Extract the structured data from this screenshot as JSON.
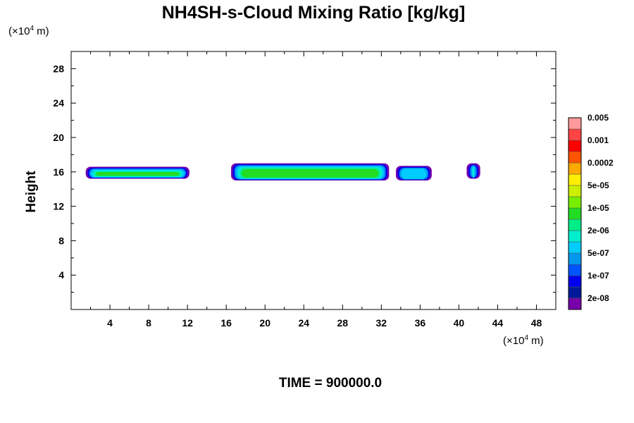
{
  "chart_data": {
    "type": "heatmap",
    "title": "NH4SH-s-Cloud Mixing Ratio [kg/kg]",
    "xlabel": "",
    "ylabel": "Height",
    "x_unit_label": "(×10⁴ m)",
    "y_unit_label": "(×10⁴ m)",
    "x_unit_prefix": "(×10",
    "x_unit_exp": "4",
    "x_unit_suffix": " m)",
    "xlim": [
      0,
      50
    ],
    "ylim": [
      0,
      30
    ],
    "xticks": [
      4,
      8,
      12,
      16,
      20,
      24,
      28,
      32,
      36,
      40,
      44,
      48
    ],
    "yticks": [
      4,
      8,
      12,
      16,
      20,
      24,
      28
    ],
    "grid": false,
    "colorbar": {
      "placement": "right",
      "colors": [
        "#7700aa",
        "#001a99",
        "#0000ee",
        "#0055ff",
        "#0099ee",
        "#00ccff",
        "#00eecc",
        "#00ee88",
        "#22dd22",
        "#77ee00",
        "#ccee00",
        "#ffee00",
        "#ffaa00",
        "#ff5500",
        "#ff0000",
        "#ff4444",
        "#ff9999"
      ],
      "labels": [
        "2e-08",
        "1e-07",
        "5e-07",
        "2e-06",
        "1e-05",
        "5e-05",
        "0.0002",
        "0.001",
        "0.005"
      ]
    },
    "cloud_regions": [
      {
        "x_start": 1.5,
        "x_end": 12.2,
        "y_bottom": 15.2,
        "y_top": 16.6,
        "max_level": "1e-05"
      },
      {
        "x_start": 16.5,
        "x_end": 32.8,
        "y_bottom": 15.0,
        "y_top": 17.0,
        "max_level": "1e-05"
      },
      {
        "x_start": 33.5,
        "x_end": 37.2,
        "y_bottom": 15.0,
        "y_top": 16.7,
        "max_level": "5e-07"
      },
      {
        "x_start": 40.8,
        "x_end": 42.2,
        "y_bottom": 15.2,
        "y_top": 17.0,
        "max_level": "2e-06"
      }
    ],
    "footer": "TIME = 900000.0"
  }
}
